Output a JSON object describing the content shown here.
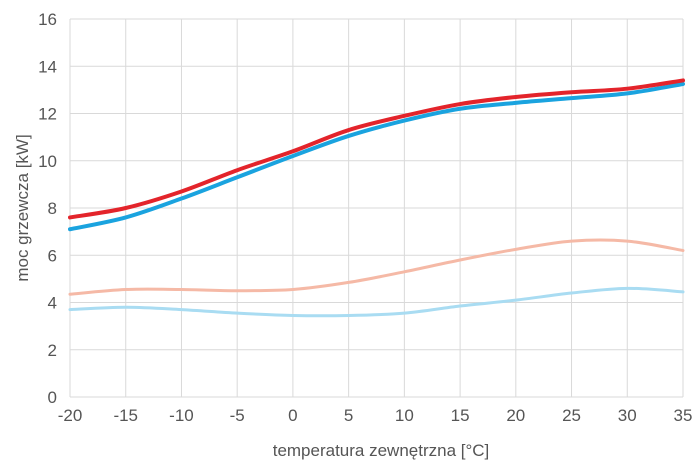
{
  "chart_data": {
    "type": "line",
    "title": "",
    "xlabel": "temperatura zewnętrzna [°C]",
    "ylabel": "moc grzewcza [kW]",
    "xlim": [
      -20,
      35
    ],
    "ylim": [
      0,
      16
    ],
    "x_ticks": [
      -20,
      -15,
      -10,
      -5,
      0,
      5,
      10,
      15,
      20,
      25,
      30,
      35
    ],
    "y_ticks": [
      0,
      2,
      4,
      6,
      8,
      10,
      12,
      14,
      16
    ],
    "grid": true,
    "legend": "none",
    "x": [
      -20,
      -15,
      -10,
      -5,
      0,
      5,
      10,
      15,
      20,
      25,
      30,
      35
    ],
    "series": [
      {
        "color": "#e3242b",
        "width": 4,
        "values": [
          7.6,
          8.0,
          8.7,
          9.6,
          10.4,
          11.3,
          11.9,
          12.4,
          12.7,
          12.9,
          13.05,
          13.4
        ]
      },
      {
        "color": "#1aa3df",
        "width": 4,
        "values": [
          7.1,
          7.6,
          8.4,
          9.3,
          10.2,
          11.05,
          11.7,
          12.2,
          12.45,
          12.65,
          12.85,
          13.25
        ]
      },
      {
        "color": "#f5b9a6",
        "width": 3,
        "values": [
          4.35,
          4.55,
          4.55,
          4.5,
          4.55,
          4.85,
          5.3,
          5.8,
          6.25,
          6.6,
          6.6,
          6.2
        ]
      },
      {
        "color": "#a9dcf2",
        "width": 3,
        "values": [
          3.7,
          3.8,
          3.7,
          3.55,
          3.45,
          3.45,
          3.55,
          3.85,
          4.1,
          4.4,
          4.6,
          4.45
        ]
      }
    ]
  }
}
